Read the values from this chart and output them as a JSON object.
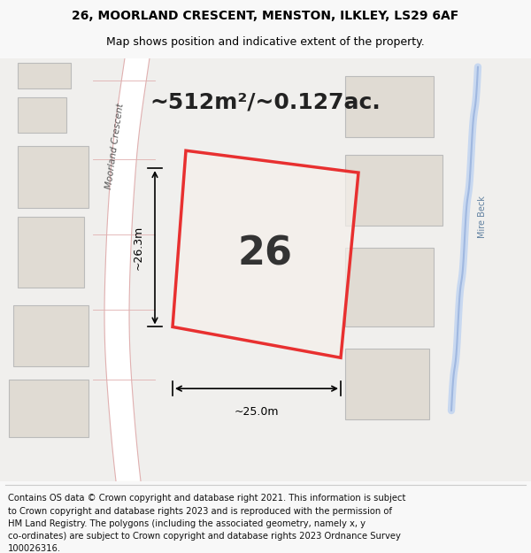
{
  "title_line1": "26, MOORLAND CRESCENT, MENSTON, ILKLEY, LS29 6AF",
  "title_line2": "Map shows position and indicative extent of the property.",
  "footer_text": "Contains OS data © Crown copyright and database right 2021. This information is subject to Crown copyright and database rights 2023 and is reproduced with the permission of HM Land Registry. The polygons (including the associated geometry, namely x, y co-ordinates) are subject to Crown copyright and database rights 2023 Ordnance Survey 100026316.",
  "area_label": "~512m²/~0.127ac.",
  "plot_number": "26",
  "dim_width": "~25.0m",
  "dim_height": "~26.3m",
  "road_label": "Moorland Crescent",
  "water_label": "Mire Beck",
  "bg_color": "#e8e8e8",
  "map_bg": "#f0efed",
  "plot_fill": "#f5f0eb",
  "plot_edge": "#e83030",
  "road_color": "#ffffff",
  "road_line_color": "#e0b0b0",
  "building_fill": "#ddd8d0",
  "building_edge": "#bbbbbb",
  "water_color": "#c8d8f0",
  "title_fontsize": 10,
  "subtitle_fontsize": 9,
  "footer_fontsize": 7.2
}
